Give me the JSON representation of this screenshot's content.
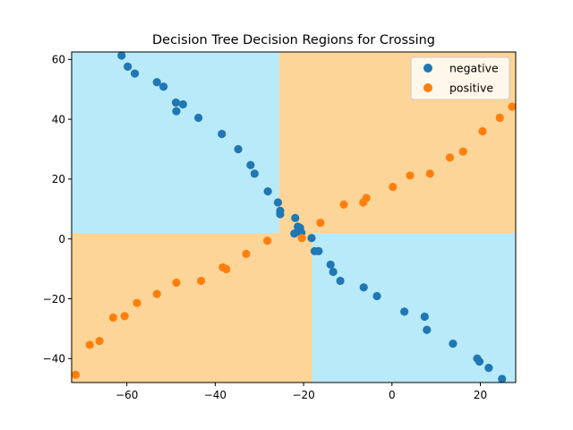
{
  "chart_data": {
    "type": "scatter",
    "title": "Decision Tree Decision Regions for Crossing",
    "xlabel": "",
    "ylabel": "",
    "xlim": [
      -72.5,
      28
    ],
    "ylim": [
      -48,
      62.5
    ],
    "xticks": [
      -60,
      -40,
      -20,
      0,
      20
    ],
    "yticks": [
      -40,
      -20,
      0,
      20,
      40,
      60
    ],
    "grid": false,
    "legend_position": "top-right",
    "colors": {
      "negative_region": "#b9eafa",
      "positive_region": "#fed598",
      "negative_points": "#1f77b4",
      "positive_points": "#ff7f0e"
    },
    "decision_regions": [
      {
        "label": "negative",
        "x": [
          -72.5,
          -25.5
        ],
        "y": [
          2,
          62.5
        ]
      },
      {
        "label": "positive",
        "x": [
          -25.5,
          28
        ],
        "y": [
          2,
          62.5
        ]
      },
      {
        "label": "positive",
        "x": [
          -72.5,
          -18
        ],
        "y": [
          -48,
          2
        ]
      },
      {
        "label": "negative",
        "x": [
          -18,
          28
        ],
        "y": [
          -48,
          2
        ]
      }
    ],
    "series": [
      {
        "name": "negative",
        "points": [
          [
            -61.2,
            61.3
          ],
          [
            -59.8,
            57.6
          ],
          [
            -58.2,
            55.3
          ],
          [
            -53.2,
            52.4
          ],
          [
            -51.7,
            50.9
          ],
          [
            -48.9,
            45.6
          ],
          [
            -47.3,
            45.0
          ],
          [
            -48.8,
            42.7
          ],
          [
            -43.8,
            40.5
          ],
          [
            -38.5,
            35.1
          ],
          [
            -34.8,
            30.0
          ],
          [
            -32.0,
            24.7
          ],
          [
            -31.1,
            21.8
          ],
          [
            -28.1,
            15.9
          ],
          [
            -25.8,
            12.2
          ],
          [
            -25.3,
            9.4
          ],
          [
            -25.3,
            8.3
          ],
          [
            -21.9,
            7.0
          ],
          [
            -21.3,
            4.1
          ],
          [
            -20.8,
            3.7
          ],
          [
            -21.4,
            2.4
          ],
          [
            -20.5,
            2.1
          ],
          [
            -22.1,
            1.8
          ],
          [
            -18.2,
            0.3
          ],
          [
            -17.5,
            -4.1
          ],
          [
            -16.6,
            -4.1
          ],
          [
            -13.9,
            -8.6
          ],
          [
            -13.3,
            -11.0
          ],
          [
            -11.7,
            -14.0
          ],
          [
            -6.4,
            -16.2
          ],
          [
            -3.4,
            -19.1
          ],
          [
            2.8,
            -24.3
          ],
          [
            7.4,
            -26.0
          ],
          [
            7.9,
            -30.4
          ],
          [
            13.8,
            -35.0
          ],
          [
            19.3,
            -40.0
          ],
          [
            19.8,
            -41.0
          ],
          [
            21.9,
            -43.1
          ],
          [
            24.9,
            -46.8
          ]
        ]
      },
      {
        "name": "positive",
        "points": [
          [
            -71.6,
            -45.4
          ],
          [
            -68.4,
            -35.4
          ],
          [
            -66.2,
            -34.1
          ],
          [
            -63.1,
            -26.3
          ],
          [
            -60.5,
            -25.8
          ],
          [
            -57.7,
            -21.4
          ],
          [
            -53.2,
            -18.4
          ],
          [
            -48.8,
            -14.6
          ],
          [
            -43.2,
            -14.0
          ],
          [
            -38.3,
            -9.5
          ],
          [
            -37.5,
            -10.1
          ],
          [
            -33.0,
            -5.0
          ],
          [
            -28.2,
            -0.6
          ],
          [
            -20.4,
            0.3
          ],
          [
            -16.2,
            5.4
          ],
          [
            -10.9,
            11.5
          ],
          [
            -6.5,
            12.2
          ],
          [
            -5.8,
            13.7
          ],
          [
            0.2,
            17.4
          ],
          [
            4.1,
            21.2
          ],
          [
            8.6,
            21.8
          ],
          [
            13.1,
            27.2
          ],
          [
            16.1,
            29.2
          ],
          [
            20.5,
            36.0
          ],
          [
            24.4,
            40.5
          ],
          [
            27.2,
            44.2
          ]
        ]
      }
    ]
  }
}
